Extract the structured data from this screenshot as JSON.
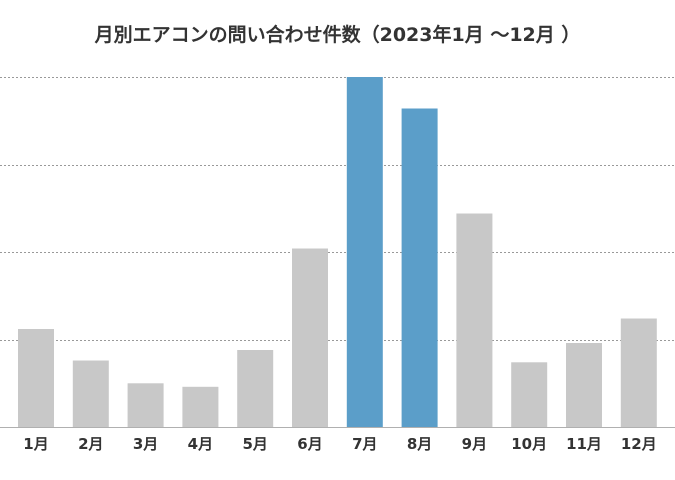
{
  "chart_data": {
    "type": "bar",
    "title": "月別エアコンの問い合わせ件数（2023年1月 ～12月 ）",
    "xlabel": "",
    "ylabel": "",
    "categories": [
      "1月",
      "2月",
      "3月",
      "4月",
      "5月",
      "6月",
      "7月",
      "8月",
      "9月",
      "10月",
      "11月",
      "12月"
    ],
    "values": [
      28,
      19,
      12.5,
      11.5,
      22,
      51,
      100,
      91,
      61,
      18.5,
      24,
      31
    ],
    "ylim": [
      0,
      100
    ],
    "gridlines": [
      25,
      50,
      75,
      100
    ],
    "grid": true,
    "highlighted_categories": [
      "7月",
      "8月"
    ],
    "colors": {
      "bar": "#c8c8c8",
      "highlight": "#5b9ec9",
      "grid": "#999999",
      "axis": "#b0b0b0",
      "text": "#333333"
    }
  }
}
